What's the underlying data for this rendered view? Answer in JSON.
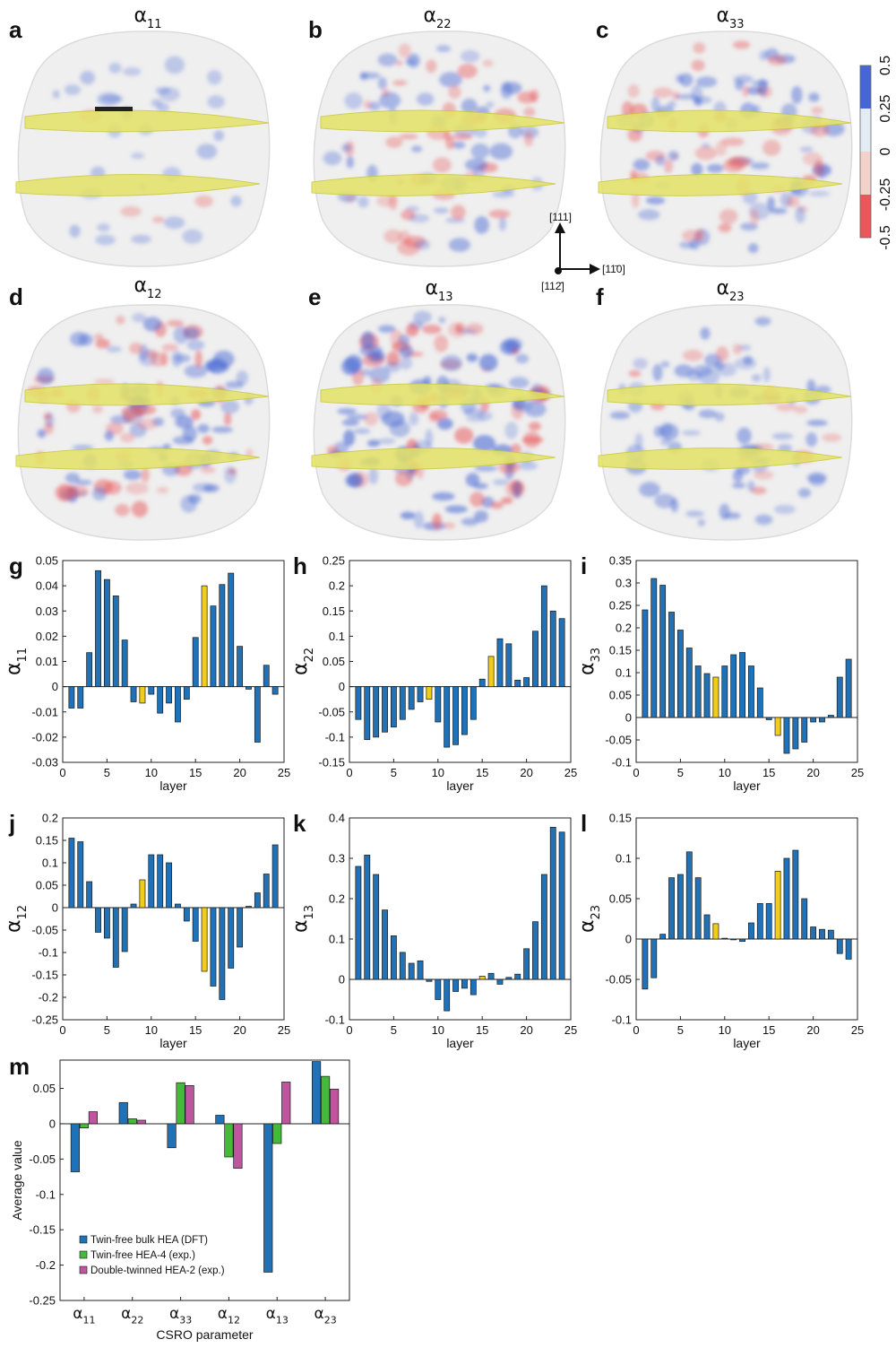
{
  "colors": {
    "blue": "#1f72b8",
    "yellow": "#f2cc1b",
    "green": "#44b93a",
    "magenta": "#c0559f",
    "twin_plane": "#e4e366",
    "negative": "#e8585a",
    "positive": "#4566d4"
  },
  "renders": [
    {
      "letter": "a",
      "symbol": "α",
      "sub": "11"
    },
    {
      "letter": "b",
      "symbol": "α",
      "sub": "22"
    },
    {
      "letter": "c",
      "symbol": "α",
      "sub": "33"
    },
    {
      "letter": "d",
      "symbol": "α",
      "sub": "12"
    },
    {
      "letter": "e",
      "symbol": "α",
      "sub": "13"
    },
    {
      "letter": "f",
      "symbol": "α",
      "sub": "23"
    }
  ],
  "colorbar": {
    "ticks": [
      "-0.5",
      "-0.25",
      "0",
      "0.25",
      "0.5"
    ]
  },
  "directions": {
    "up": "[111]",
    "right": "[11̄0]",
    "out": "[112̄]"
  },
  "chart_data": [
    {
      "letter": "g",
      "type": "bar",
      "symbol": "α",
      "sub": "11",
      "xlabel": "layer",
      "xlim": [
        0,
        25
      ],
      "xticks": [
        0,
        5,
        10,
        15,
        20,
        25
      ],
      "ylim": [
        -0.03,
        0.05
      ],
      "yticks": [
        "-0.03",
        "-0.02",
        "-0.01",
        "0",
        "0.01",
        "0.02",
        "0.03",
        "0.04",
        "0.05"
      ],
      "highlight_layers": [
        9,
        16
      ],
      "values": [
        -0.0085,
        -0.0085,
        0.0135,
        0.046,
        0.0425,
        0.036,
        0.0185,
        -0.006,
        -0.0065,
        -0.003,
        -0.0105,
        -0.0065,
        -0.014,
        -0.005,
        0.0195,
        0.04,
        0.032,
        0.0405,
        0.045,
        0.016,
        -0.001,
        -0.022,
        0.0085,
        -0.003
      ]
    },
    {
      "letter": "h",
      "type": "bar",
      "symbol": "α",
      "sub": "22",
      "xlabel": "layer",
      "xlim": [
        0,
        25
      ],
      "xticks": [
        0,
        5,
        10,
        15,
        20,
        25
      ],
      "ylim": [
        -0.15,
        0.25
      ],
      "yticks": [
        "-0.15",
        "-0.1",
        "-0.05",
        "0",
        "0.05",
        "0.1",
        "0.15",
        "0.2",
        "0.25"
      ],
      "highlight_layers": [
        9,
        16
      ],
      "values": [
        -0.065,
        -0.105,
        -0.1,
        -0.09,
        -0.08,
        -0.065,
        -0.045,
        -0.03,
        -0.025,
        -0.07,
        -0.12,
        -0.115,
        -0.095,
        -0.065,
        0.015,
        0.06,
        0.095,
        0.085,
        0.013,
        0.018,
        0.11,
        0.2,
        0.15,
        0.135
      ]
    },
    {
      "letter": "i",
      "type": "bar",
      "symbol": "α",
      "sub": "33",
      "xlabel": "layer",
      "xlim": [
        0,
        25
      ],
      "xticks": [
        0,
        5,
        10,
        15,
        20,
        25
      ],
      "ylim": [
        -0.1,
        0.35
      ],
      "yticks": [
        "-0.1",
        "-0.05",
        "0",
        "0.05",
        "0.1",
        "0.15",
        "0.2",
        "0.25",
        "0.3",
        "0.35"
      ],
      "highlight_layers": [
        9,
        16
      ],
      "values": [
        0.24,
        0.31,
        0.295,
        0.235,
        0.195,
        0.155,
        0.115,
        0.098,
        0.09,
        0.115,
        0.14,
        0.145,
        0.115,
        0.066,
        -0.005,
        -0.04,
        -0.08,
        -0.07,
        -0.055,
        -0.01,
        -0.01,
        0.005,
        0.09,
        0.13
      ]
    },
    {
      "letter": "j",
      "type": "bar",
      "symbol": "α",
      "sub": "12",
      "xlabel": "layer",
      "xlim": [
        0,
        25
      ],
      "xticks": [
        0,
        5,
        10,
        15,
        20,
        25
      ],
      "ylim": [
        -0.25,
        0.2
      ],
      "yticks": [
        "-0.25",
        "-0.2",
        "-0.15",
        "-0.1",
        "-0.05",
        "0",
        "0.05",
        "0.1",
        "0.15",
        "0.2"
      ],
      "highlight_layers": [
        9,
        16
      ],
      "values": [
        0.155,
        0.147,
        0.058,
        -0.055,
        -0.068,
        -0.133,
        -0.098,
        0.008,
        0.062,
        0.118,
        0.118,
        0.1,
        0.008,
        -0.03,
        -0.075,
        -0.142,
        -0.175,
        -0.205,
        -0.135,
        -0.088,
        0.003,
        0.033,
        0.075,
        0.14
      ]
    },
    {
      "letter": "k",
      "type": "bar",
      "symbol": "α",
      "sub": "13",
      "xlabel": "layer",
      "xlim": [
        0,
        25
      ],
      "xticks": [
        0,
        5,
        10,
        15,
        20,
        25
      ],
      "ylim": [
        -0.1,
        0.4
      ],
      "yticks": [
        "-0.1",
        "0",
        "0.1",
        "0.2",
        "0.3",
        "0.4"
      ],
      "highlight_layers": [
        15
      ],
      "values": [
        0.28,
        0.308,
        0.26,
        0.172,
        0.108,
        0.067,
        0.04,
        0.046,
        -0.005,
        -0.05,
        -0.078,
        -0.03,
        -0.022,
        -0.038,
        0.008,
        0.015,
        -0.012,
        0.005,
        0.013,
        0.076,
        0.143,
        0.26,
        0.377,
        0.365
      ]
    },
    {
      "letter": "l",
      "type": "bar",
      "symbol": "α",
      "sub": "23",
      "xlabel": "layer",
      "xlim": [
        0,
        25
      ],
      "xticks": [
        0,
        5,
        10,
        15,
        20,
        25
      ],
      "ylim": [
        -0.1,
        0.15
      ],
      "yticks": [
        "-0.1",
        "-0.05",
        "0",
        "0.05",
        "0.1",
        "0.15"
      ],
      "highlight_layers": [
        9,
        16
      ],
      "values": [
        -0.062,
        -0.048,
        0.006,
        0.076,
        0.08,
        0.108,
        0.076,
        0.03,
        0.019,
        0.001,
        -0.001,
        -0.003,
        0.02,
        0.044,
        0.044,
        0.084,
        0.1,
        0.11,
        0.05,
        0.015,
        0.012,
        0.011,
        -0.018,
        -0.025
      ]
    },
    {
      "letter": "m",
      "type": "bar",
      "ylabel": "Average value",
      "xlabel": "CSRO parameter",
      "ylim": [
        -0.25,
        0.09
      ],
      "yticks": [
        "-0.25",
        "-0.2",
        "-0.15",
        "-0.1",
        "-0.05",
        "0",
        "0.05"
      ],
      "categories": [
        {
          "symbol": "α",
          "sub": "11"
        },
        {
          "symbol": "α",
          "sub": "22"
        },
        {
          "symbol": "α",
          "sub": "33"
        },
        {
          "symbol": "α",
          "sub": "12"
        },
        {
          "symbol": "α",
          "sub": "13"
        },
        {
          "symbol": "α",
          "sub": "23"
        }
      ],
      "series": [
        {
          "name": "Twin-free bulk HEA (DFT)",
          "values": [
            -0.068,
            0.03,
            -0.034,
            0.012,
            -0.21,
            0.088
          ]
        },
        {
          "name": "Twin-free HEA-4 (exp.)",
          "values": [
            -0.006,
            0.007,
            0.058,
            -0.047,
            -0.028,
            0.067
          ]
        },
        {
          "name": "Double-twinned HEA-2 (exp.)",
          "values": [
            0.017,
            0.005,
            0.054,
            -0.063,
            0.059,
            0.049
          ]
        }
      ]
    }
  ]
}
